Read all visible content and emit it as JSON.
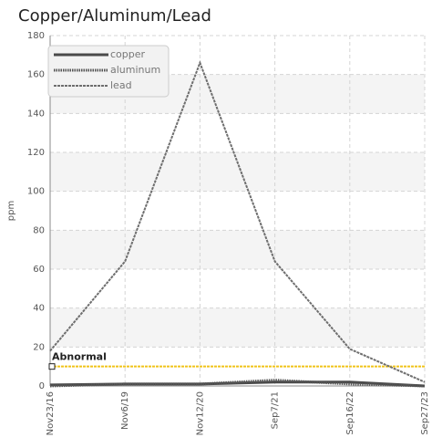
{
  "chart_data": {
    "type": "line",
    "title": "Copper/Aluminum/Lead",
    "y_label": "ppm",
    "categories": [
      "Nov23/16",
      "Nov6/19",
      "Nov12/20",
      "Sep7/21",
      "Sep16/22",
      "Sep27/23"
    ],
    "series": [
      {
        "name": "copper",
        "color": "#4a4a4a",
        "style": "solid",
        "values": [
          0.5,
          1,
          1,
          2,
          2,
          0
        ]
      },
      {
        "name": "aluminum",
        "color": "#555555",
        "style": "dotted",
        "values": [
          0,
          1,
          1,
          3,
          1,
          0
        ]
      },
      {
        "name": "lead",
        "color": "#6e6e6e",
        "style": "dashed",
        "values": [
          18,
          64,
          166,
          64,
          19,
          2
        ]
      }
    ],
    "annotations": [
      {
        "label": "Abnormal",
        "value": 10,
        "color": "#f0c419"
      }
    ],
    "ylim": [
      0,
      180
    ],
    "yticks": [
      0,
      20,
      40,
      60,
      80,
      100,
      120,
      140,
      160,
      180
    ],
    "grid": true,
    "legend": "top-left"
  }
}
